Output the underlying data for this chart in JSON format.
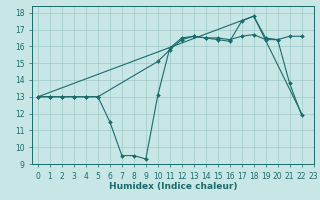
{
  "title": "",
  "xlabel": "Humidex (Indice chaleur)",
  "xlim": [
    -0.5,
    23
  ],
  "ylim": [
    9,
    18.4
  ],
  "yticks": [
    9,
    10,
    11,
    12,
    13,
    14,
    15,
    16,
    17,
    18
  ],
  "xticks": [
    0,
    1,
    2,
    3,
    4,
    5,
    6,
    7,
    8,
    9,
    10,
    11,
    12,
    13,
    14,
    15,
    16,
    17,
    18,
    19,
    20,
    21,
    22,
    23
  ],
  "bg_color": "#c8e6e6",
  "line_color": "#1a6b6b",
  "grid_color": "#a0c8c8",
  "series0": {
    "x": [
      0,
      1,
      2,
      3,
      4,
      5,
      6,
      7,
      8,
      9,
      10,
      11,
      12,
      13,
      14,
      15,
      16,
      17,
      18,
      19,
      20,
      21,
      22
    ],
    "y": [
      13,
      13,
      13,
      13,
      13,
      13,
      11.5,
      9.5,
      9.5,
      9.3,
      13.1,
      15.9,
      16.5,
      16.6,
      16.5,
      16.4,
      16.3,
      17.5,
      17.8,
      16.5,
      16.4,
      13.8,
      11.9
    ]
  },
  "series1": {
    "x": [
      0,
      1,
      2,
      3,
      4,
      5,
      10,
      11,
      12,
      13,
      14,
      15,
      16,
      17,
      18,
      19,
      20,
      21,
      22
    ],
    "y": [
      13,
      13,
      13,
      13,
      13,
      13,
      15.1,
      15.8,
      16.4,
      16.6,
      16.5,
      16.5,
      16.4,
      16.6,
      16.7,
      16.4,
      16.4,
      16.6,
      16.6
    ]
  },
  "series2": {
    "x": [
      0,
      18,
      22
    ],
    "y": [
      13,
      17.8,
      12.0
    ]
  }
}
